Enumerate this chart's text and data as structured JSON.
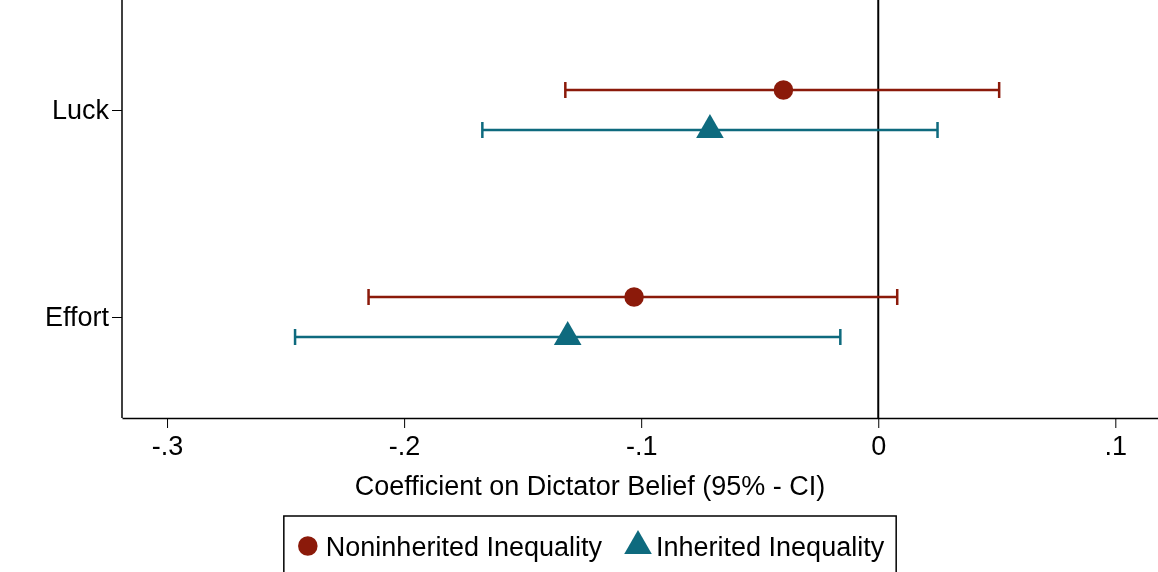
{
  "chart_data": {
    "type": "scatter",
    "orientation": "horizontal",
    "xlabel": "Coefficient on Dictator Belief (95% - CI)",
    "categories": [
      "Luck",
      "Effort"
    ],
    "series": [
      {
        "name": "Noninherited Inequality",
        "color": "#8b1a0a",
        "marker": "circle",
        "values": [
          -0.04,
          -0.103
        ],
        "errors": [
          [
            -0.132,
            0.051
          ],
          [
            -0.215,
            0.008
          ]
        ]
      },
      {
        "name": "Inherited Inequality",
        "color": "#0e6a7e",
        "marker": "triangle",
        "values": [
          -0.071,
          -0.131
        ],
        "errors": [
          [
            -0.167,
            0.025
          ],
          [
            -0.246,
            -0.016
          ]
        ]
      }
    ],
    "xlim": [
      -0.319,
      0.118
    ],
    "xticks": [
      {
        "value": -0.3,
        "label": "-.3"
      },
      {
        "value": -0.2,
        "label": "-.2"
      },
      {
        "value": -0.1,
        "label": "-.1"
      },
      0,
      {
        "value": 0.1,
        "label": ".1"
      }
    ],
    "ref_lines": [
      {
        "axis": "x",
        "value": 0,
        "color": "#000000"
      }
    ],
    "legend": "bottom"
  }
}
